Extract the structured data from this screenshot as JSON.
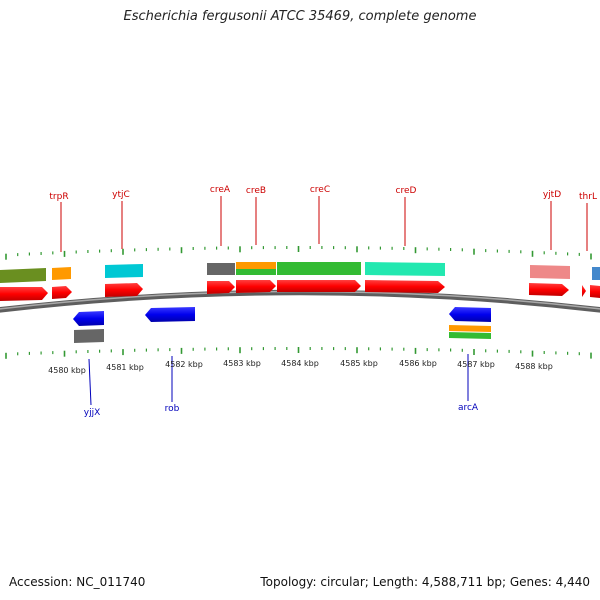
{
  "title": "Escherichia fergusonii ATCC 35469, complete genome",
  "footer": {
    "accession": "Accession: NC_011740",
    "summary": "Topology: circular; Length: 4,588,711 bp; Genes: 4,440"
  },
  "colors": {
    "forward_label": "#cc0000",
    "reverse_label": "#0000bb",
    "tick": "#339933",
    "backbone": "#8a8a8a"
  },
  "kbp_labels": [
    "4580 kbp",
    "4581 kbp",
    "4582 kbp",
    "4583 kbp",
    "4584 kbp",
    "4585 kbp",
    "4586 kbp",
    "4587 kbp",
    "4588 kbp"
  ],
  "top_labels": [
    "trpR",
    "ytjC",
    "creA",
    "creB",
    "creC",
    "creD",
    "yjtD",
    "thrL"
  ],
  "bottom_labels": [
    "yjjX",
    "rob",
    "arcA"
  ],
  "genes": [
    {
      "name": "trpR",
      "strand": "+",
      "color": "#ff9900",
      "icon": "orange-gene-block"
    },
    {
      "name": "ytjC",
      "strand": "+",
      "color": "#00c8d4",
      "icon": "cyan-gene-block"
    },
    {
      "name": "creA",
      "strand": "+",
      "color": "#666666",
      "icon": "gray-gene-block"
    },
    {
      "name": "creB",
      "strand": "+",
      "color": "#ff9900",
      "icon": "orange-green-gene-block"
    },
    {
      "name": "creC",
      "strand": "+",
      "color": "#33bb33",
      "icon": "green-gene-block"
    },
    {
      "name": "creD",
      "strand": "+",
      "color": "#22e8b0",
      "icon": "teal-gene-block"
    },
    {
      "name": "yjtD",
      "strand": "+",
      "color": "#ee8888",
      "icon": "pink-gene-block"
    },
    {
      "name": "thrL",
      "strand": "+",
      "color": "#4488cc",
      "icon": "blue-gene-block"
    },
    {
      "name": "yjjX",
      "strand": "-",
      "color": "#666666",
      "icon": "gray-gene-block"
    },
    {
      "name": "rob",
      "strand": "-",
      "color": "#0000ee",
      "icon": "blue-gene-arrow"
    },
    {
      "name": "arcA",
      "strand": "-",
      "color": "#ff9900",
      "icon": "orange-green-gene-block"
    }
  ]
}
